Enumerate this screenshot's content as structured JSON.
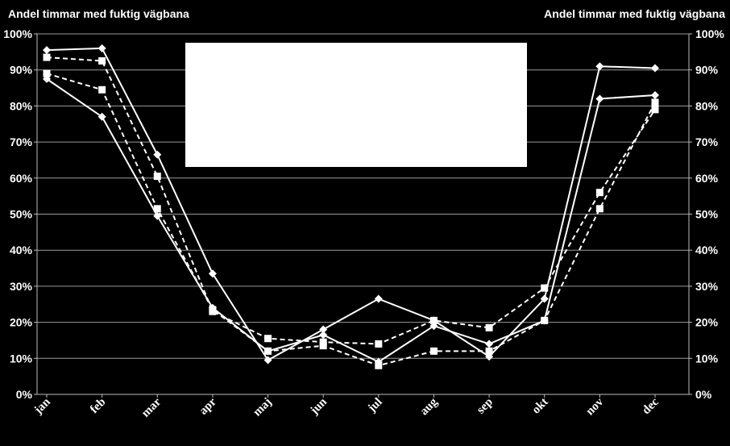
{
  "chart_data": {
    "type": "line",
    "ylabel_left": "Andel timmar med fuktig vägbana",
    "ylabel_right": "Andel timmar med fuktig vägbana",
    "categories": [
      "jan",
      "feb",
      "mar",
      "apr",
      "maj",
      "jun",
      "jul",
      "aug",
      "sep",
      "okt",
      "nov",
      "dec"
    ],
    "yticks": [
      "0%",
      "10%",
      "20%",
      "30%",
      "40%",
      "50%",
      "60%",
      "70%",
      "80%",
      "90%",
      "100%"
    ],
    "ylim": [
      0,
      100
    ],
    "grid": true,
    "legend": "white box, top-center (no visible text)",
    "series": [
      {
        "marker": "diamond",
        "dash": "solid",
        "values": [
          95.5,
          96.0,
          66.5,
          33.5,
          9.5,
          18.0,
          26.5,
          20.5,
          10.5,
          26.5,
          91.0,
          90.5
        ]
      },
      {
        "marker": "diamond",
        "dash": "solid",
        "values": [
          87.5,
          77.0,
          49.5,
          24.0,
          12.0,
          16.5,
          9.0,
          19.0,
          14.0,
          20.5,
          82.0,
          83.0
        ]
      },
      {
        "marker": "square",
        "dash": "dashed",
        "values": [
          93.5,
          92.5,
          60.5,
          23.0,
          15.5,
          14.5,
          14.0,
          20.5,
          18.5,
          29.5,
          56.0,
          79.0
        ]
      },
      {
        "marker": "square",
        "dash": "dashed",
        "values": [
          89.0,
          84.5,
          51.5,
          23.5,
          12.0,
          13.5,
          8.0,
          12.0,
          12.0,
          20.5,
          51.5,
          81.0
        ]
      }
    ]
  }
}
